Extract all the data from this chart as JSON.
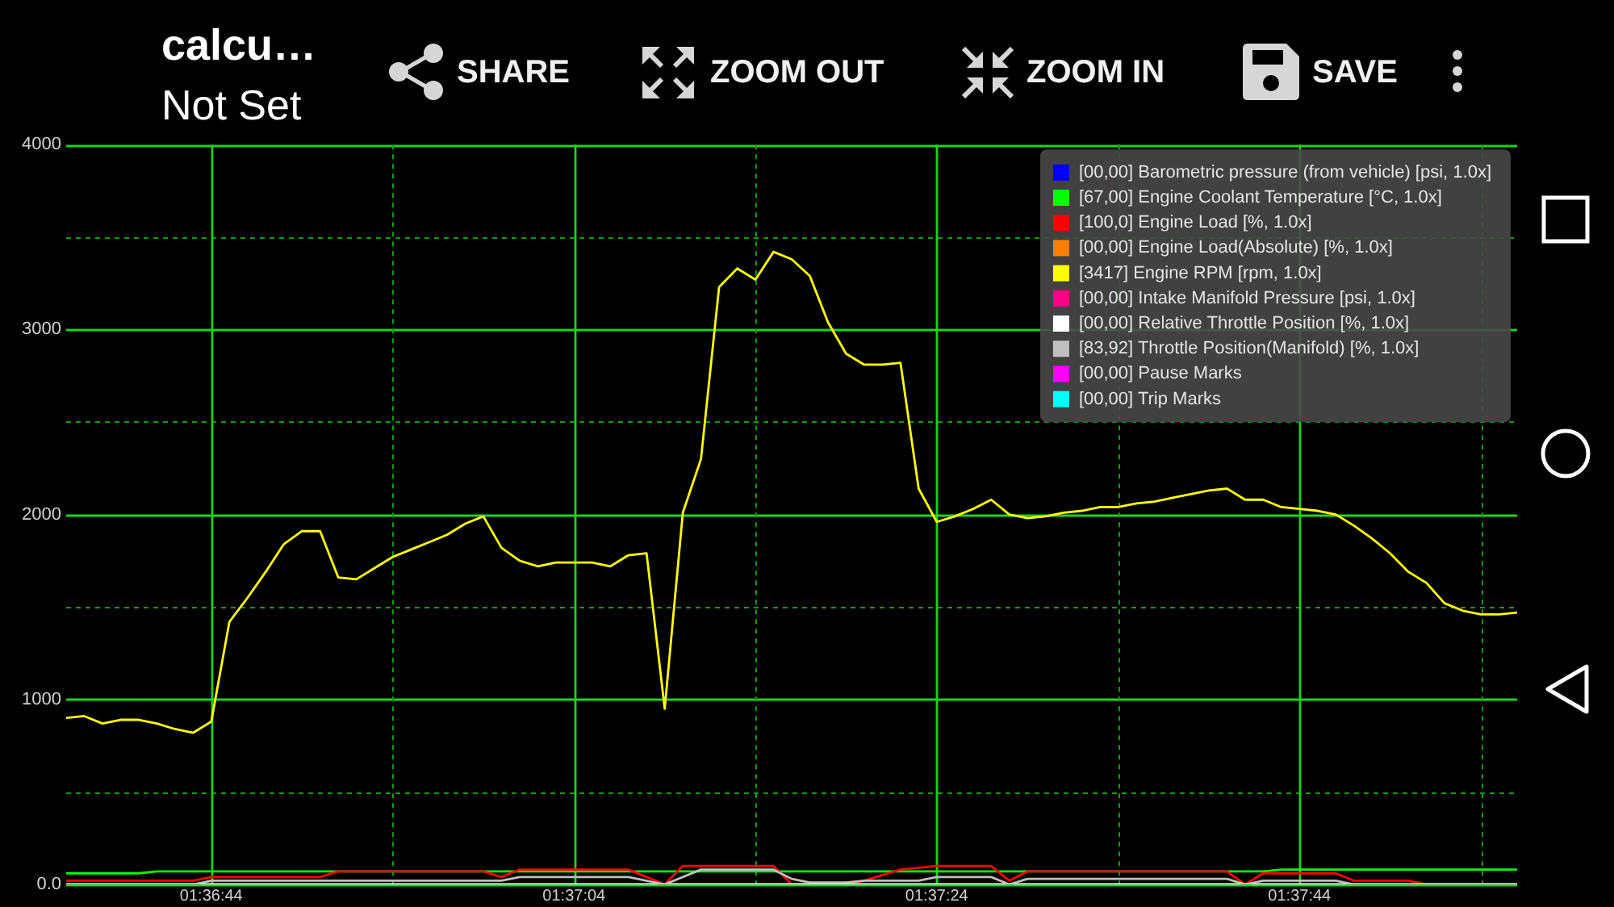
{
  "chart_data": {
    "type": "line",
    "title": "calcu…",
    "subtitle": "Not Set",
    "annotations": [
      "SHARE",
      "ZOOM OUT",
      "ZOOM IN",
      "SAVE"
    ],
    "xlim": [
      1.61,
      1.6322222
    ],
    "xticks": [
      {
        "value": 1.6122222,
        "label": "01:36:44"
      },
      {
        "value": 1.615,
        "label": null
      },
      {
        "value": 1.6177778,
        "label": "01:37:04"
      },
      {
        "value": 1.6205556,
        "label": null
      },
      {
        "value": 1.6233333,
        "label": "01:37:24"
      },
      {
        "value": 1.6261111,
        "label": null
      },
      {
        "value": 1.6288889,
        "label": "01:37:44"
      },
      {
        "value": 1.6316667,
        "label": null
      }
    ],
    "ylim": [
      0,
      4000
    ],
    "yticks": [
      {
        "value": 0,
        "label": "0.0"
      },
      {
        "value": 500,
        "label": null
      },
      1000,
      {
        "value": 1500,
        "label": null
      },
      2000,
      {
        "value": 2500,
        "label": null
      },
      3000,
      {
        "value": 3500,
        "label": null
      },
      4000
    ],
    "grid": true,
    "legend": "top right",
    "series": [
      {
        "name": "[00,00] Barometric pressure (from vehicle) [psi, 1.0x]",
        "color": "#0000ff"
      },
      {
        "name": "[67,00] Engine Coolant Temperature [°C, 1.0x]",
        "color": "#00ff00",
        "x": [
          1.61,
          1.6111111,
          1.6113889,
          1.6283333,
          1.6286111,
          1.6322222
        ],
        "values": [
          60,
          60,
          70,
          70,
          80,
          80
        ]
      },
      {
        "name": "[100,0] Engine Load [%, 1.0x]",
        "color": "#ff0000",
        "x": [
          1.61,
          1.6119444,
          1.6122222,
          1.6138889,
          1.6141667,
          1.6163889,
          1.6166667,
          1.6169444,
          1.6186111,
          1.6191667,
          1.6194444,
          1.6197222,
          1.6208333,
          1.6211111,
          1.6219444,
          1.6222222,
          1.6227778,
          1.6233333,
          1.6241667,
          1.6244444,
          1.6247222,
          1.6277778,
          1.6280556,
          1.6283333,
          1.6294444,
          1.6297222,
          1.6305556,
          1.6308333,
          1.6322222
        ],
        "values": [
          20,
          20,
          40,
          40,
          70,
          70,
          40,
          80,
          80,
          0,
          100,
          100,
          100,
          0,
          0,
          20,
          80,
          100,
          100,
          20,
          70,
          70,
          0,
          60,
          60,
          20,
          20,
          0,
          0
        ]
      },
      {
        "name": "[00,00] Engine Load(Absolute) [%, 1.0x]",
        "color": "#ff8000"
      },
      {
        "name": "[3417] Engine RPM [rpm, 1.0x]",
        "color": "#ffff00",
        "x": [
          1.61,
          1.6102778,
          1.6105556,
          1.6108333,
          1.6111111,
          1.6113889,
          1.6116667,
          1.6119444,
          1.6122222,
          1.6125,
          1.6127778,
          1.6130556,
          1.6133333,
          1.6136111,
          1.6138889,
          1.6141667,
          1.6144444,
          1.6147222,
          1.615,
          1.6152778,
          1.6155556,
          1.6158333,
          1.6161111,
          1.6163889,
          1.6166667,
          1.6169444,
          1.6172222,
          1.6175,
          1.6177778,
          1.6180556,
          1.6183333,
          1.6186111,
          1.6188889,
          1.6191667,
          1.6194444,
          1.6197222,
          1.62,
          1.6202778,
          1.6205556,
          1.6208333,
          1.6211111,
          1.6213889,
          1.6216667,
          1.6219444,
          1.6222222,
          1.6225,
          1.6227778,
          1.6230556,
          1.6233333,
          1.6236111,
          1.6238889,
          1.6241667,
          1.6244444,
          1.6247222,
          1.625,
          1.6252778,
          1.6255556,
          1.6258333,
          1.6261111,
          1.6263889,
          1.6266667,
          1.6269444,
          1.6272222,
          1.6275,
          1.6277778,
          1.6280556,
          1.6283333,
          1.6286111,
          1.6288889,
          1.6291667,
          1.6294444,
          1.6297222,
          1.63,
          1.6302778,
          1.6305556,
          1.6308333,
          1.6311111,
          1.6313889,
          1.6316667,
          1.6319444,
          1.6322222
        ],
        "values": [
          900,
          910,
          870,
          890,
          890,
          870,
          840,
          820,
          880,
          1420,
          1550,
          1690,
          1840,
          1910,
          1910,
          1660,
          1650,
          1710,
          1770,
          1810,
          1850,
          1890,
          1950,
          1990,
          1820,
          1750,
          1720,
          1740,
          1740,
          1740,
          1720,
          1780,
          1790,
          950,
          2010,
          2300,
          3230,
          3330,
          3270,
          3420,
          3380,
          3290,
          3040,
          2870,
          2810,
          2810,
          2820,
          2140,
          1960,
          1990,
          2030,
          2080,
          2000,
          1980,
          1990,
          2010,
          2020,
          2040,
          2040,
          2060,
          2070,
          2090,
          2110,
          2130,
          2140,
          2080,
          2080,
          2040,
          2030,
          2020,
          2000,
          1940,
          1870,
          1790,
          1690,
          1630,
          1520,
          1480,
          1460,
          1460,
          1470
        ]
      },
      {
        "name": "[00,00] Intake Manifold Pressure [psi, 1.0x]",
        "color": "#ff0088"
      },
      {
        "name": "[00,00] Relative Throttle Position [%, 1.0x]",
        "color": "#ffffff",
        "x": [
          1.61,
          1.6322222
        ],
        "values": [
          0,
          0
        ]
      },
      {
        "name": "[83,92] Throttle Position(Manifold) [%, 1.0x]",
        "color": "#c0c0c0",
        "x": [
          1.61,
          1.6119444,
          1.6122222,
          1.6166667,
          1.6169444,
          1.6186111,
          1.6191667,
          1.6197222,
          1.6208333,
          1.6211111,
          1.6213889,
          1.6219444,
          1.6222222,
          1.6230556,
          1.6233333,
          1.6241667,
          1.6244444,
          1.6247222,
          1.6277778,
          1.6280556,
          1.6283333,
          1.6294444,
          1.6297222,
          1.6322222
        ],
        "values": [
          0,
          0,
          20,
          20,
          40,
          40,
          0,
          80,
          80,
          30,
          10,
          10,
          20,
          20,
          40,
          40,
          0,
          30,
          30,
          0,
          20,
          20,
          0,
          0
        ]
      },
      {
        "name": "[00,00] Pause Marks",
        "color": "#ff00ff"
      },
      {
        "name": "[00,00] Trip Marks",
        "color": "#00ffff"
      }
    ]
  }
}
